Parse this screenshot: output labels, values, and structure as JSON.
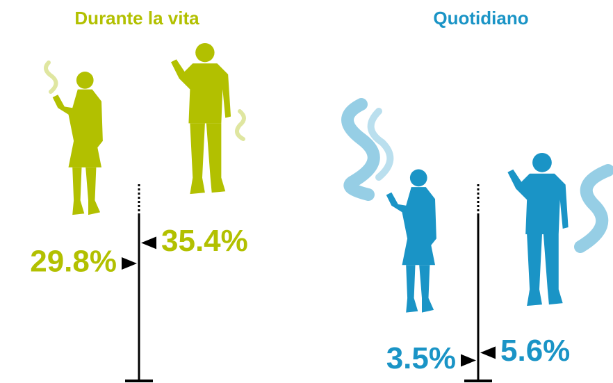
{
  "chart_data": [
    {
      "type": "marker",
      "title": "Durante la vita",
      "color": "#b2c000",
      "values": [
        29.8,
        35.4
      ],
      "value_labels": [
        "29.8%",
        "35.4%"
      ]
    },
    {
      "type": "marker",
      "title": "Quotidiano",
      "color": "#1a94c6",
      "values": [
        3.5,
        5.6
      ],
      "value_labels": [
        "3.5%",
        "5.6%"
      ]
    }
  ]
}
